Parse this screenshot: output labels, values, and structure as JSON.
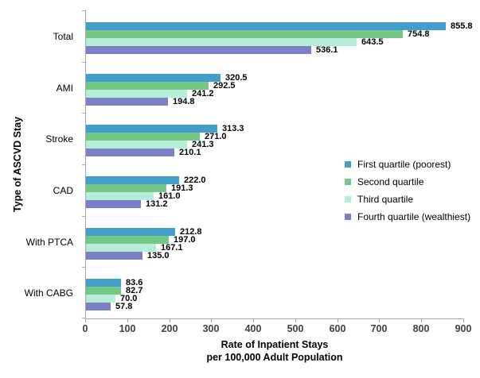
{
  "chart_data": {
    "type": "bar",
    "orientation": "horizontal",
    "ylabel": "Type of ASCVD Stay",
    "xlabel_line1": "Rate of Inpatient Stays",
    "xlabel_line2": "per 100,000 Adult Population",
    "categories": [
      "Total",
      "AMI",
      "Stroke",
      "CAD",
      "With PTCA",
      "With CABG"
    ],
    "series": [
      {
        "name": "First quartile (poorest)",
        "color": "#429FCA",
        "values": [
          855.8,
          320.5,
          313.3,
          222.0,
          212.8,
          83.6
        ]
      },
      {
        "name": "Second quartile",
        "color": "#74C784",
        "values": [
          754.8,
          292.5,
          271.0,
          191.3,
          197.0,
          82.7
        ]
      },
      {
        "name": "Third quartile",
        "color": "#B6EDD8",
        "values": [
          643.5,
          241.2,
          241.3,
          161.0,
          167.1,
          70.0
        ]
      },
      {
        "name": "Fourth quartile (wealthiest)",
        "color": "#7A80C6",
        "values": [
          536.1,
          194.8,
          210.1,
          131.2,
          135.0,
          57.8
        ]
      }
    ],
    "xlim": [
      0,
      900
    ],
    "xticks": [
      0,
      100,
      200,
      300,
      400,
      500,
      600,
      700,
      800,
      900
    ],
    "value_decimals": 1,
    "grid": false,
    "legend_position": "right",
    "axis_color": "#A6A6A6"
  }
}
